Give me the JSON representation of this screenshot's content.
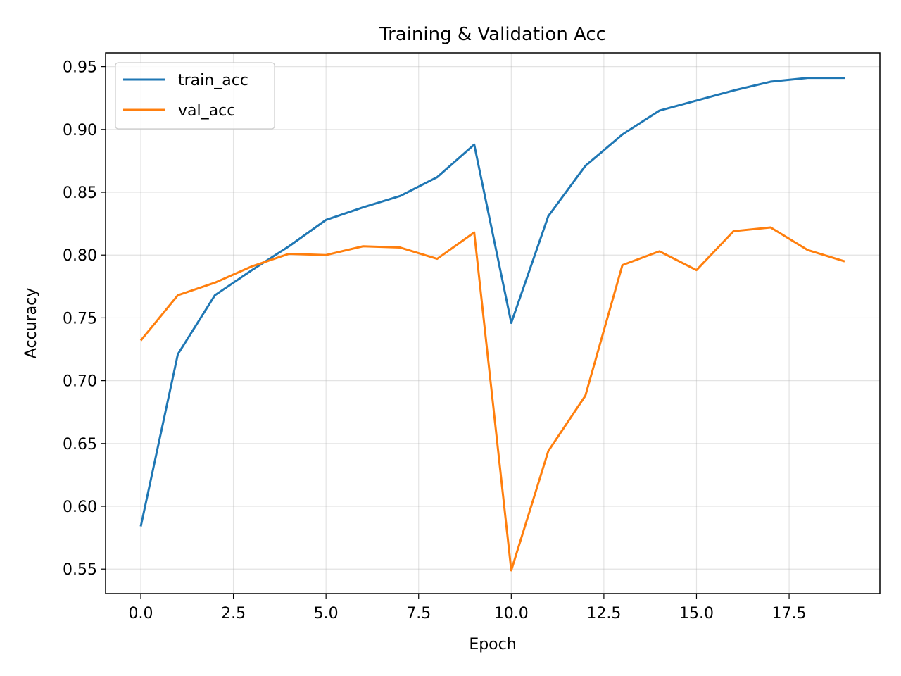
{
  "chart_data": {
    "type": "line",
    "title": "Training & Validation Acc",
    "xlabel": "Epoch",
    "ylabel": "Accuracy",
    "xlim": [
      -0.95,
      19.95
    ],
    "ylim": [
      0.5305,
      0.961
    ],
    "xticks": [
      0.0,
      2.5,
      5.0,
      7.5,
      10.0,
      12.5,
      15.0,
      17.5
    ],
    "xtick_labels": [
      "0.0",
      "2.5",
      "5.0",
      "7.5",
      "10.0",
      "12.5",
      "15.0",
      "17.5"
    ],
    "yticks": [
      0.55,
      0.6,
      0.65,
      0.7,
      0.75,
      0.8,
      0.85,
      0.9,
      0.95
    ],
    "ytick_labels": [
      "0.55",
      "0.60",
      "0.65",
      "0.70",
      "0.75",
      "0.80",
      "0.85",
      "0.90",
      "0.95"
    ],
    "grid": true,
    "legend_position": "top-left",
    "x": [
      0,
      1,
      2,
      3,
      4,
      5,
      6,
      7,
      8,
      9,
      10,
      11,
      12,
      13,
      14,
      15,
      16,
      17,
      18,
      19
    ],
    "series": [
      {
        "name": "train_acc",
        "color": "#1f77b4",
        "values": [
          0.584,
          0.721,
          0.768,
          0.788,
          0.807,
          0.828,
          0.838,
          0.847,
          0.862,
          0.888,
          0.746,
          0.831,
          0.871,
          0.896,
          0.915,
          0.923,
          0.931,
          0.938,
          0.941,
          0.941
        ]
      },
      {
        "name": "val_acc",
        "color": "#ff7f0e",
        "values": [
          0.732,
          0.768,
          0.778,
          0.791,
          0.801,
          0.8,
          0.807,
          0.806,
          0.797,
          0.818,
          0.549,
          0.644,
          0.688,
          0.792,
          0.803,
          0.788,
          0.819,
          0.822,
          0.804,
          0.795
        ]
      }
    ]
  }
}
